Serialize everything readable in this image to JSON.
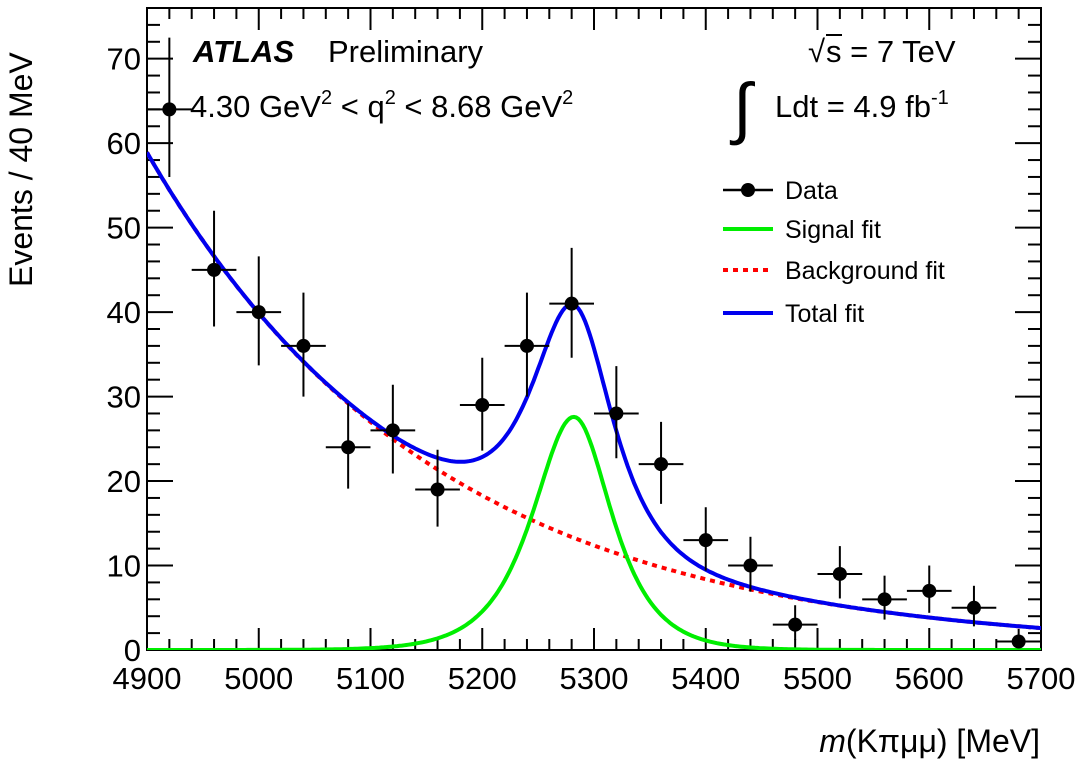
{
  "chart_data": {
    "type": "scatter",
    "experiment": "ATLAS",
    "status": "Preliminary",
    "selection": {
      "low": "4.30 GeV",
      "low_exp": "2",
      "op1": " < q",
      "q_exp": "2",
      "op2": " < 8.68 GeV",
      "high_exp": "2"
    },
    "energy": {
      "sqrt_symbol": "√",
      "label": "s = 7 TeV"
    },
    "luminosity": {
      "integral_symbol": "∫",
      "label": "Ldt = 4.9 fb",
      "exponent": "-1"
    },
    "xlabel": {
      "var": "m",
      "rest": "(Kπμμ) [MeV]"
    },
    "ylabel": "Events / 40 MeV",
    "xlim": [
      4900,
      5700
    ],
    "ylim": [
      0,
      76
    ],
    "x_ticks": [
      4900,
      5000,
      5100,
      5200,
      5300,
      5400,
      5500,
      5600,
      5700
    ],
    "y_ticks": [
      0,
      10,
      20,
      30,
      40,
      50,
      60,
      70
    ],
    "bin_width": 40,
    "legend": [
      {
        "label": "Data",
        "style": "marker",
        "color": "#000000"
      },
      {
        "label": "Signal fit",
        "style": "solid",
        "color": "#00ee00"
      },
      {
        "label": "Background fit",
        "style": "dashed",
        "color": "#ff0000"
      },
      {
        "label": "Total fit",
        "style": "solid",
        "color": "#0000ee"
      }
    ],
    "data": {
      "x": [
        4920,
        4960,
        5000,
        5040,
        5080,
        5120,
        5160,
        5200,
        5240,
        5280,
        5320,
        5360,
        5400,
        5440,
        5480,
        5520,
        5560,
        5600,
        5640,
        5680
      ],
      "y": [
        64,
        45,
        40,
        36,
        24,
        26,
        19,
        29,
        36,
        41,
        28,
        22,
        13,
        10,
        3,
        9,
        6,
        7,
        5,
        1
      ],
      "err_up": [
        8.5,
        7.0,
        6.6,
        6.3,
        5.2,
        5.4,
        4.7,
        5.6,
        6.3,
        6.6,
        5.6,
        5.0,
        3.9,
        3.4,
        2.3,
        3.3,
        2.8,
        3.0,
        2.6,
        1.5
      ],
      "err_down": [
        8.0,
        6.7,
        6.3,
        6.0,
        4.9,
        5.1,
        4.4,
        5.4,
        6.0,
        6.4,
        5.3,
        4.7,
        3.6,
        3.1,
        1.8,
        2.9,
        2.4,
        2.6,
        2.2,
        0.8
      ]
    },
    "fit_params": {
      "background": {
        "amplitude": 58.9,
        "x0": 4900,
        "slope": 0.0039
      },
      "signal": {
        "amplitude": 27.6,
        "mean": 5282,
        "sigma_left": 36,
        "sigma_right": 33
      }
    }
  }
}
